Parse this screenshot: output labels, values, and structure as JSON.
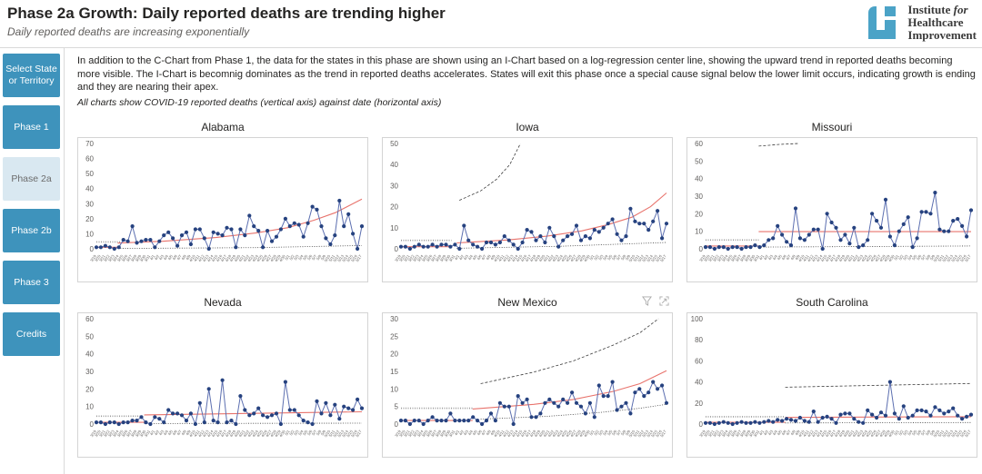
{
  "header": {
    "title": "Phase 2a Growth: Daily reported deaths are trending higher",
    "subtitle": "Daily reported deaths are increasing exponentially"
  },
  "logo": {
    "line1_a": "Institute ",
    "line1_b": "for",
    "line2": "Healthcare",
    "line3": "Improvement"
  },
  "sidebar": {
    "items": [
      {
        "label": "Select State or Territory",
        "active": false
      },
      {
        "label": "Phase 1",
        "active": false
      },
      {
        "label": "Phase 2a",
        "active": true
      },
      {
        "label": "Phase 2b",
        "active": false
      },
      {
        "label": "Phase 3",
        "active": false
      },
      {
        "label": "Credits",
        "active": false
      }
    ]
  },
  "intro": {
    "paragraph": "In addition to the C-Chart from Phase 1, the data for the states in this phase are shown using an I-Chart based on a log-regression center line, showing the upward trend in reported deaths becoming more visible. The I-Chart is becomnig dominates as the trend in reported deaths accelerates. States will exit this phase once a special cause signal below the lower limit occurs, indicating growth is ending and they are nearing their apex.",
    "note": "All charts show COVID-19 reported deaths (vertical axis) against date (horizontal axis)"
  },
  "colors": {
    "nav_teal": "#3e93bc",
    "nav_active_bg": "#d9e8f1",
    "logo_teal": "#4ba3c7",
    "dot_blue": "#26427f",
    "line_blue": "#5c6fb0",
    "center_red": "#e8736c",
    "limit_gray": "#3c3c3c",
    "border_gray": "#d4d4d4",
    "text_dark": "#252423",
    "text_subtle": "#605e5c"
  },
  "chart_data": {
    "type": "line",
    "note": "I-Charts of daily COVID-19 reported deaths by state; blue dots = daily deaths, red = log-regression center line, dashed/dotted black = control limits",
    "xlabel": "date",
    "ylabel": "reported deaths",
    "dates": [
      "3/19",
      "3/20",
      "3/21",
      "3/22",
      "3/23",
      "3/24",
      "3/25",
      "3/26",
      "3/27",
      "3/28",
      "3/29",
      "3/30",
      "3/31",
      "4/1",
      "4/2",
      "4/3",
      "4/4",
      "4/5",
      "4/6",
      "4/7",
      "4/8",
      "4/9",
      "4/10",
      "4/11",
      "4/12",
      "4/13",
      "4/14",
      "4/15",
      "4/16",
      "4/17",
      "4/18",
      "4/19",
      "4/20",
      "4/21",
      "4/22",
      "4/23",
      "4/24",
      "4/25",
      "4/26",
      "4/27",
      "4/28",
      "4/29",
      "4/30",
      "5/1",
      "5/2",
      "5/3",
      "5/4",
      "5/5",
      "5/6",
      "5/7",
      "5/8",
      "5/9",
      "5/10",
      "5/11",
      "5/12",
      "5/13",
      "5/14",
      "5/15",
      "5/16",
      "5/17"
    ],
    "charts": [
      {
        "title": "Alabama",
        "ylim": 70,
        "yticks": [
          0,
          10,
          20,
          30,
          40,
          50,
          60,
          70
        ],
        "values": [
          1,
          1,
          2,
          1,
          0,
          1,
          6,
          5,
          15,
          4,
          5,
          6,
          6,
          1,
          5,
          9,
          11,
          7,
          2,
          9,
          11,
          3,
          13,
          13,
          7,
          0,
          11,
          10,
          9,
          14,
          13,
          1,
          13,
          9,
          22,
          15,
          12,
          1,
          12,
          5,
          8,
          13,
          20,
          15,
          17,
          16,
          8,
          17,
          28,
          26,
          15,
          7,
          3,
          9,
          32,
          15,
          23,
          10,
          0,
          15
        ],
        "center": [
          [
            [
              0,
              1
            ],
            [
              0.08,
              1
            ]
          ],
          [
            [
              0.08,
              3.8
            ],
            [
              0.25,
              5
            ],
            [
              0.45,
              7.5
            ],
            [
              0.6,
              10.5
            ],
            [
              0.72,
              14
            ],
            [
              0.82,
              19
            ],
            [
              0.9,
              24
            ],
            [
              1,
              33
            ]
          ]
        ],
        "limits": [
          {
            "style": "graydot",
            "pts": [
              [
                0,
                4.6
              ],
              [
                0.09,
                4.6
              ]
            ]
          },
          {
            "style": "dotted",
            "pts": [
              [
                0.09,
                0.25
              ],
              [
                0.6,
                0.8
              ],
              [
                1,
                2.2
              ]
            ]
          }
        ]
      },
      {
        "title": "Iowa",
        "ylim": 50,
        "yticks": [
          0,
          10,
          20,
          30,
          40,
          50
        ],
        "values": [
          1,
          1,
          0,
          1,
          2,
          1,
          1,
          2,
          1,
          2,
          2,
          1,
          2,
          0,
          11,
          4,
          2,
          1,
          0,
          3,
          3,
          2,
          3,
          6,
          4,
          2,
          0,
          3,
          9,
          8,
          4,
          6,
          3,
          10,
          6,
          1,
          4,
          6,
          7,
          11,
          4,
          6,
          5,
          9,
          8,
          10,
          12,
          14,
          7,
          4,
          6,
          19,
          13,
          12,
          12,
          9,
          13,
          18,
          5,
          12
        ],
        "center": [
          [
            [
              0,
              1
            ],
            [
              0.19,
              1
            ]
          ],
          [
            [
              0.21,
              2.8
            ],
            [
              0.4,
              4.2
            ],
            [
              0.55,
              6
            ],
            [
              0.68,
              8.5
            ],
            [
              0.78,
              11.5
            ],
            [
              0.87,
              15
            ],
            [
              0.94,
              20
            ],
            [
              1,
              26.5
            ]
          ]
        ],
        "limits": [
          {
            "style": "graydot",
            "pts": [
              [
                0,
                4
              ],
              [
                0.19,
                4
              ]
            ]
          },
          {
            "style": "dashed",
            "pts": [
              [
                0.22,
                23
              ],
              [
                0.3,
                27.5
              ],
              [
                0.36,
                33
              ],
              [
                0.41,
                40
              ],
              [
                0.45,
                50
              ]
            ]
          },
          {
            "style": "dotted",
            "pts": [
              [
                0.21,
                0.25
              ],
              [
                0.6,
                1.2
              ],
              [
                1,
                3
              ]
            ]
          }
        ]
      },
      {
        "title": "Missouri",
        "ylim": 60,
        "yticks": [
          0,
          10,
          20,
          30,
          40,
          50,
          60
        ],
        "values": [
          1,
          1,
          0,
          1,
          1,
          0,
          1,
          1,
          0,
          1,
          1,
          2,
          1,
          2,
          5,
          6,
          13,
          8,
          4,
          2,
          23,
          6,
          5,
          8,
          11,
          11,
          0,
          20,
          15,
          12,
          5,
          8,
          3,
          12,
          1,
          2,
          5,
          20,
          16,
          12,
          28,
          7,
          2,
          10,
          14,
          18,
          1,
          6,
          21,
          21,
          20,
          32,
          11,
          10,
          10,
          16,
          17,
          13,
          7,
          22
        ],
        "center": [
          [
            [
              0,
              1.6
            ],
            [
              0.2,
              1.6
            ]
          ],
          [
            [
              0.2,
              9.8
            ],
            [
              1,
              9.8
            ]
          ]
        ],
        "limits": [
          {
            "style": "graydot",
            "pts": [
              [
                0,
                5
              ],
              [
                0.2,
                5
              ]
            ]
          },
          {
            "style": "dashed",
            "pts": [
              [
                0.2,
                58.5
              ],
              [
                0.28,
                59.5
              ],
              [
                0.35,
                60
              ]
            ]
          },
          {
            "style": "dotted",
            "pts": [
              [
                0.2,
                1
              ],
              [
                1,
                1.6
              ]
            ]
          }
        ]
      },
      {
        "title": "Nevada",
        "ylim": 60,
        "yticks": [
          0,
          10,
          20,
          30,
          40,
          50,
          60
        ],
        "values": [
          1,
          1,
          0,
          1,
          1,
          0,
          1,
          1,
          2,
          2,
          4,
          1,
          0,
          4,
          3,
          1,
          8,
          6,
          6,
          5,
          2,
          6,
          0,
          12,
          1,
          20,
          2,
          1,
          25,
          1,
          2,
          0,
          16,
          8,
          5,
          6,
          9,
          5,
          4,
          5,
          6,
          0,
          24,
          8,
          8,
          5,
          2,
          1,
          0,
          13,
          6,
          12,
          5,
          11,
          3,
          10,
          9,
          8,
          14,
          9
        ],
        "center": [
          [
            [
              0,
              1
            ],
            [
              0.18,
              1
            ]
          ],
          [
            [
              0.18,
              5.2
            ],
            [
              1,
              7
            ]
          ]
        ],
        "limits": [
          {
            "style": "graydot",
            "pts": [
              [
                0,
                4.5
              ],
              [
                0.18,
                4.5
              ]
            ]
          },
          {
            "style": "dotted",
            "pts": [
              [
                0.18,
                0.3
              ],
              [
                1,
                0.5
              ]
            ]
          }
        ]
      },
      {
        "title": "New Mexico",
        "ylim": 30,
        "yticks": [
          0,
          5,
          10,
          15,
          20,
          25,
          30
        ],
        "values": [
          1,
          1,
          0,
          1,
          1,
          0,
          1,
          2,
          1,
          1,
          1,
          3,
          1,
          1,
          1,
          1,
          2,
          1,
          0,
          1,
          3,
          1,
          6,
          5,
          5,
          0,
          8,
          6,
          7,
          2,
          2,
          3,
          6,
          7,
          6,
          5,
          7,
          6,
          9,
          6,
          5,
          3,
          6,
          2,
          11,
          8,
          8,
          12,
          4,
          5,
          6,
          3,
          9,
          10,
          8,
          9,
          12,
          10,
          11,
          6
        ],
        "center": [
          [
            [
              0,
              1
            ],
            [
              0.27,
              1
            ]
          ],
          [
            [
              0.27,
              4.3
            ],
            [
              0.5,
              5.6
            ],
            [
              0.65,
              7
            ],
            [
              0.8,
              9.3
            ],
            [
              0.9,
              11.5
            ],
            [
              1,
              15.2
            ]
          ]
        ],
        "limits": [
          {
            "style": "graydot",
            "pts": [
              [
                0,
                4.5
              ],
              [
                0.27,
                4.5
              ]
            ]
          },
          {
            "style": "dashed",
            "pts": [
              [
                0.3,
                11.5
              ],
              [
                0.5,
                14.8
              ],
              [
                0.65,
                18
              ],
              [
                0.8,
                22.5
              ],
              [
                0.9,
                26
              ],
              [
                0.97,
                30
              ]
            ]
          },
          {
            "style": "dotted",
            "pts": [
              [
                0.3,
                1.4
              ],
              [
                0.55,
                2.2
              ],
              [
                0.75,
                3.3
              ],
              [
                0.9,
                4.5
              ],
              [
                1,
                5.6
              ]
            ]
          }
        ],
        "hover_icons": true
      },
      {
        "title": "South Carolina",
        "ylim": 100,
        "yticks": [
          0,
          20,
          40,
          60,
          80,
          100
        ],
        "values": [
          1,
          1,
          0,
          1,
          2,
          1,
          0,
          1,
          2,
          1,
          1,
          2,
          1,
          2,
          3,
          2,
          4,
          3,
          5,
          4,
          3,
          6,
          3,
          2,
          12,
          2,
          6,
          7,
          5,
          1,
          9,
          10,
          10,
          5,
          2,
          1,
          13,
          9,
          6,
          11,
          8,
          40,
          10,
          5,
          17,
          6,
          8,
          13,
          13,
          12,
          8,
          16,
          13,
          10,
          12,
          15,
          8,
          5,
          7,
          9
        ],
        "center": [
          [
            [
              0,
              1.6
            ],
            [
              0.3,
              1.6
            ]
          ],
          [
            [
              0.3,
              6.3
            ],
            [
              1,
              7
            ]
          ]
        ],
        "limits": [
          {
            "style": "graydot",
            "pts": [
              [
                0,
                7
              ],
              [
                0.3,
                7
              ]
            ]
          },
          {
            "style": "dashed",
            "pts": [
              [
                0.3,
                35
              ],
              [
                1,
                38.5
              ]
            ]
          },
          {
            "style": "dotted",
            "pts": [
              [
                0.3,
                1
              ],
              [
                1,
                1.5
              ]
            ]
          }
        ]
      }
    ]
  }
}
